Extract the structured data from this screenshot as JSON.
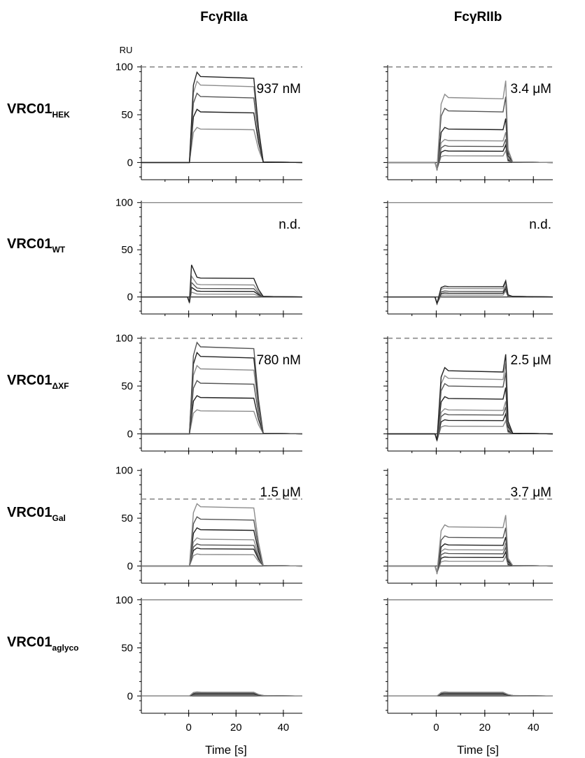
{
  "columns": [
    "FcγRIIa",
    "FcγRIIb"
  ],
  "y_unit": "RU",
  "x_label": "Time [s]",
  "rows": [
    {
      "label_main": "VRC01",
      "label_sub": "HEK"
    },
    {
      "label_main": "VRC01",
      "label_sub": "WT"
    },
    {
      "label_main": "VRC01",
      "label_sub": "ΔXF"
    },
    {
      "label_main": "VRC01",
      "label_sub": "Gal"
    },
    {
      "label_main": "VRC01",
      "label_sub": "aglyco"
    }
  ],
  "chart_data": [
    {
      "type": "line",
      "receptor": "FcγRIIa",
      "antibody": "VRC01HEK",
      "annotation": "937 nM",
      "reference_line": {
        "y": 100,
        "style": "dashed"
      },
      "spike": "none",
      "levels": [
        35,
        53,
        69,
        81,
        90
      ]
    },
    {
      "type": "line",
      "receptor": "FcγRIIb",
      "antibody": "VRC01HEK",
      "annotation": "3.4 μM",
      "reference_line": {
        "y": 100,
        "style": "dashed"
      },
      "spike": "end",
      "levels": [
        7,
        12,
        17,
        23,
        35,
        54,
        68
      ]
    },
    {
      "type": "line",
      "receptor": "FcγRIIa",
      "antibody": "VRC01WT",
      "annotation": "n.d.",
      "reference_line": {
        "y": 100,
        "style": "solid"
      },
      "spike": "start",
      "levels": [
        3,
        6,
        9,
        13,
        20
      ]
    },
    {
      "type": "line",
      "receptor": "FcγRIIb",
      "antibody": "VRC01WT",
      "annotation": "n.d.",
      "reference_line": {
        "y": 100,
        "style": "solid"
      },
      "spike": "end",
      "levels": [
        2,
        4,
        6,
        9,
        11
      ]
    },
    {
      "type": "line",
      "receptor": "FcγRIIa",
      "antibody": "VRC01ΔXF",
      "annotation": "780 nM",
      "reference_line": {
        "y": 100,
        "style": "dashed"
      },
      "spike": "none",
      "levels": [
        24,
        38,
        53,
        68,
        81,
        91
      ]
    },
    {
      "type": "line",
      "receptor": "FcγRIIb",
      "antibody": "VRC01ΔXF",
      "annotation": "2.5 μM",
      "reference_line": {
        "y": 100,
        "style": "dashed"
      },
      "spike": "end",
      "levels": [
        8,
        14,
        20,
        25,
        37,
        50,
        58,
        66
      ]
    },
    {
      "type": "line",
      "receptor": "FcγRIIa",
      "antibody": "VRC01Gal",
      "annotation": "1.5 μM",
      "reference_line": {
        "y": 70,
        "style": "dashed"
      },
      "spike": "none",
      "levels": [
        12,
        18,
        22,
        28,
        38,
        49,
        62
      ]
    },
    {
      "type": "line",
      "receptor": "FcγRIIb",
      "antibody": "VRC01Gal",
      "annotation": "3.7 μM",
      "reference_line": {
        "y": 70,
        "style": "dashed"
      },
      "spike": "end",
      "levels": [
        5,
        9,
        13,
        17,
        22,
        30,
        41
      ]
    },
    {
      "type": "line",
      "receptor": "FcγRIIa",
      "antibody": "VRC01aglyco",
      "annotation": "",
      "reference_line": {
        "y": 100,
        "style": "solid"
      },
      "spike": "none",
      "levels": [
        1,
        2,
        3,
        4
      ]
    },
    {
      "type": "line",
      "receptor": "FcγRIIb",
      "antibody": "VRC01aglyco",
      "annotation": "",
      "reference_line": {
        "y": 100,
        "style": "solid"
      },
      "spike": "none",
      "levels": [
        1,
        2,
        3,
        4
      ]
    }
  ],
  "axes": {
    "x_range": [
      -20,
      48
    ],
    "x_ticks": [
      0,
      20,
      40
    ],
    "y_range": [
      -18,
      102
    ],
    "y_ticks": [
      0,
      50,
      100
    ],
    "injection_start": 0,
    "injection_end": 29
  },
  "colors": {
    "trace_dark": "#222222",
    "trace_mid": "#555555",
    "trace_light": "#8c8c8c",
    "reference": "#8a8a8a"
  }
}
